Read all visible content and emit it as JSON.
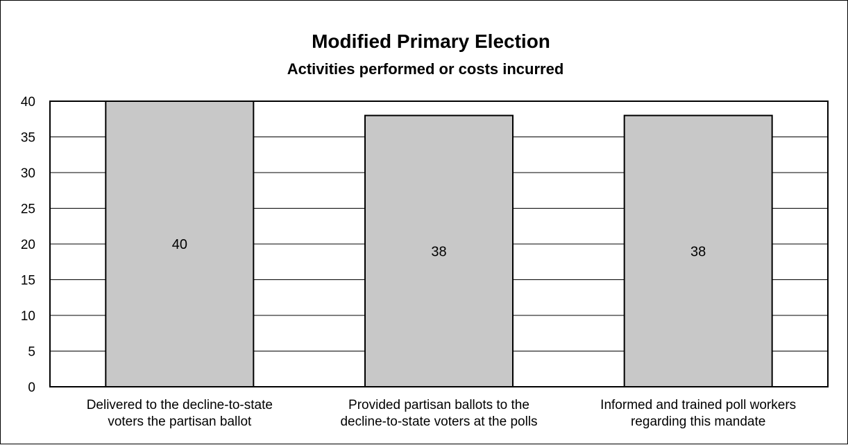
{
  "chart_data": {
    "type": "bar",
    "title": "Modified Primary Election",
    "subtitle": "Activities performed or costs incurred",
    "categories": [
      [
        "Delivered to the decline-to-state",
        "voters the partisan ballot"
      ],
      [
        "Provided partisan ballots to the",
        "decline-to-state voters at the polls"
      ],
      [
        "Informed and trained poll workers",
        "regarding this mandate"
      ]
    ],
    "values": [
      40,
      38,
      38
    ],
    "data_labels": [
      "40",
      "38",
      "38"
    ],
    "ylim": [
      0,
      40
    ],
    "yticks": [
      "0",
      "5",
      "10",
      "15",
      "20",
      "25",
      "30",
      "35",
      "40"
    ],
    "grid": true,
    "colors": {
      "bar_fill": "#c8c8c8",
      "bar_stroke": "#000000",
      "grid": "#000000"
    }
  }
}
